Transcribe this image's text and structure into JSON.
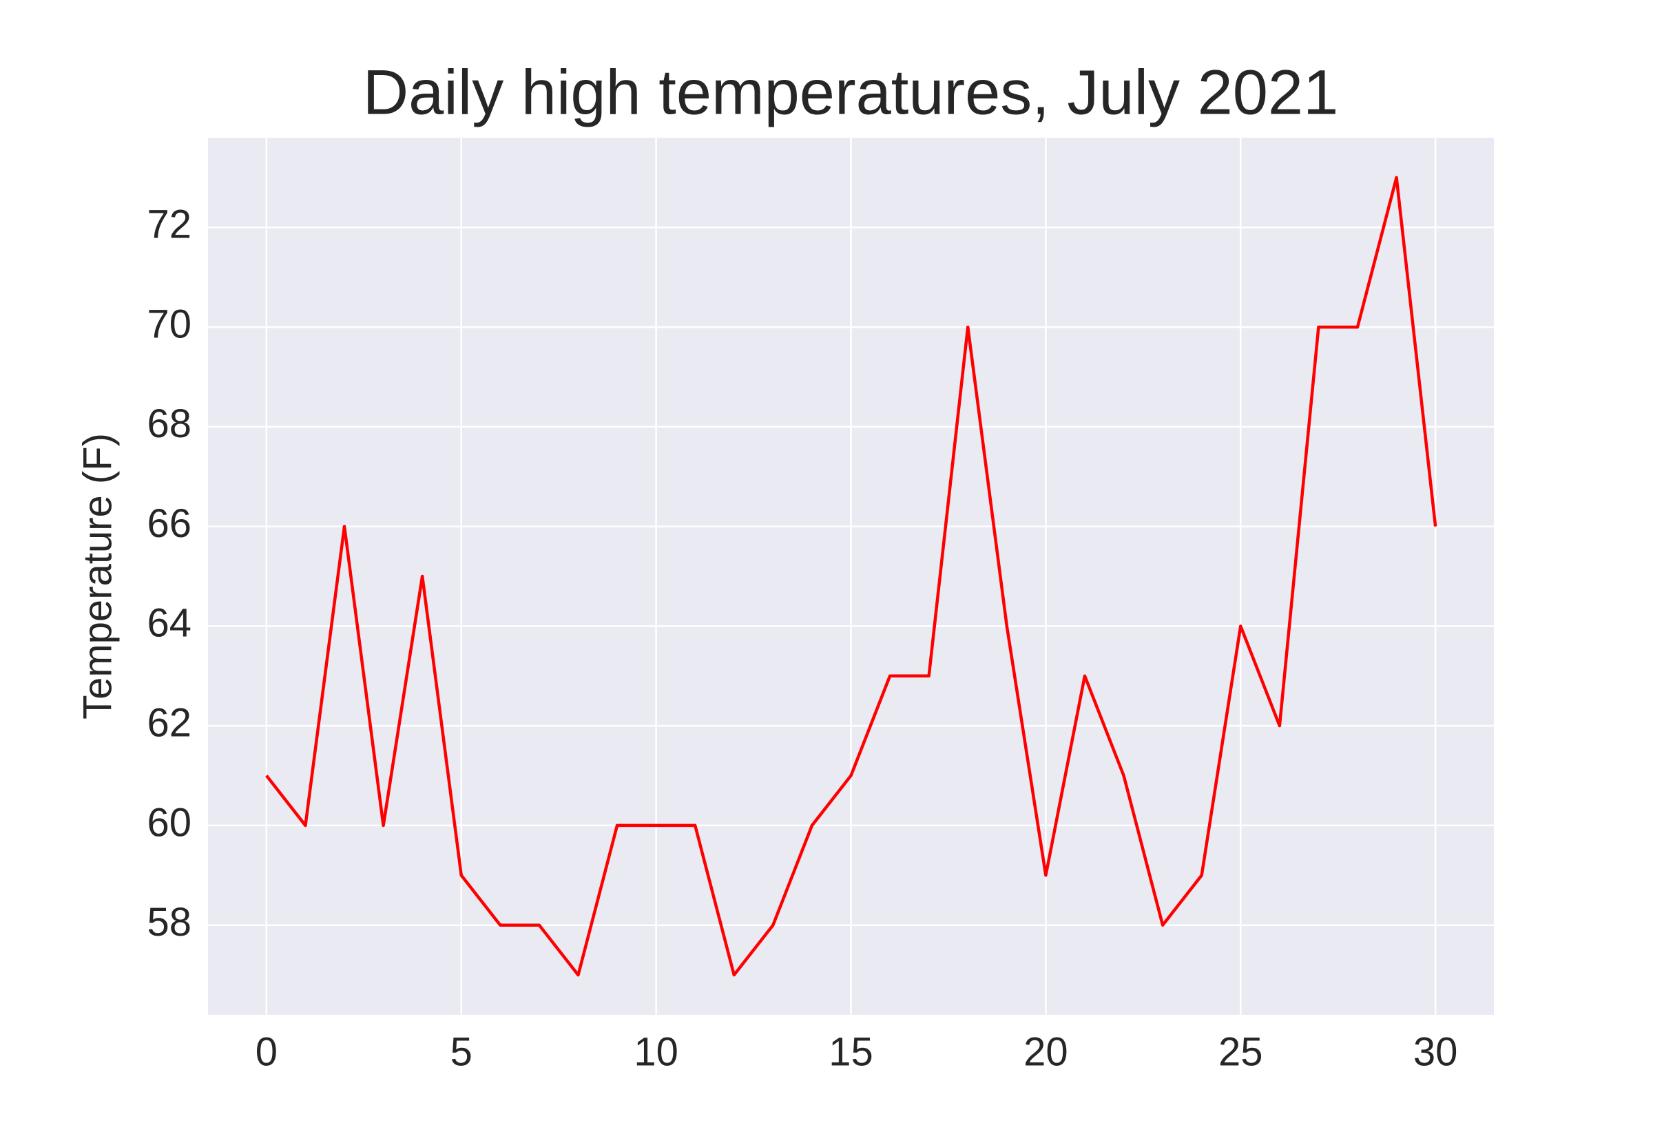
{
  "chart_data": {
    "type": "line",
    "title": "Daily high temperatures, July 2021",
    "y_label": "Temperature (F)",
    "x": [
      0,
      1,
      2,
      3,
      4,
      5,
      6,
      7,
      8,
      9,
      10,
      11,
      12,
      13,
      14,
      15,
      16,
      17,
      18,
      19,
      20,
      21,
      22,
      23,
      24,
      25,
      26,
      27,
      28,
      29,
      30
    ],
    "values": [
      61,
      60,
      66,
      60,
      65,
      59,
      58,
      58,
      57,
      60,
      60,
      60,
      57,
      58,
      60,
      61,
      63,
      63,
      70,
      64,
      59,
      63,
      61,
      58,
      59,
      64,
      62,
      70,
      70,
      73,
      66
    ],
    "color": "#ff0000",
    "xlim": [
      -1.5,
      31.5
    ],
    "xticks": [
      0,
      5,
      10,
      15,
      20,
      25,
      30
    ],
    "ylim": [
      56.2,
      73.8
    ],
    "yticks": [
      58,
      60,
      62,
      64,
      66,
      68,
      70,
      72
    ],
    "grid": true
  }
}
